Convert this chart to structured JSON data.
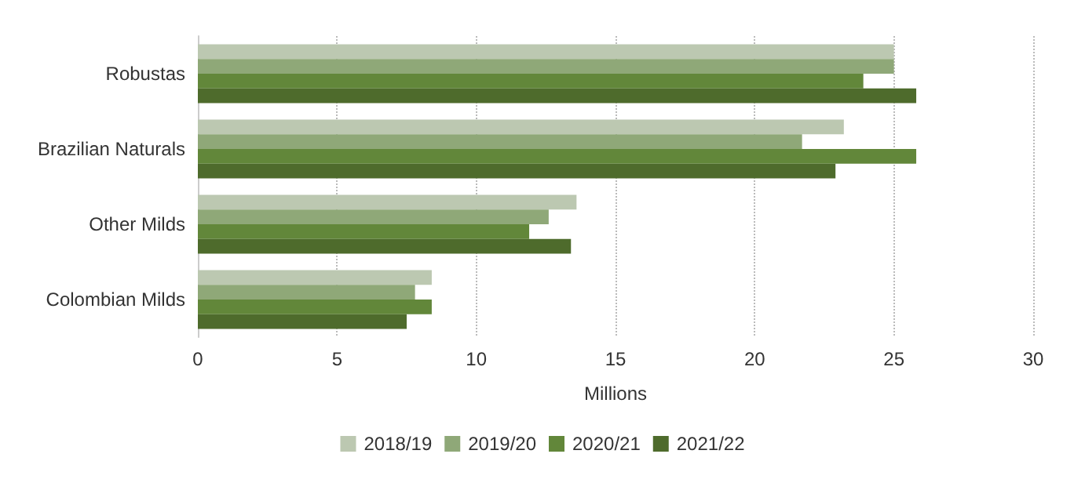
{
  "chart_data": {
    "type": "bar",
    "orientation": "horizontal",
    "xlabel": "Millions",
    "categories": [
      "Robustas",
      "Brazilian Naturals",
      "Other Milds",
      "Colombian Milds"
    ],
    "series": [
      {
        "name": "2018/19",
        "color": "#bcc8b1",
        "values": [
          25.0,
          23.2,
          13.6,
          8.4
        ]
      },
      {
        "name": "2019/20",
        "color": "#8fa878",
        "values": [
          25.0,
          21.7,
          12.6,
          7.8
        ]
      },
      {
        "name": "2020/21",
        "color": "#62873a",
        "values": [
          23.9,
          25.8,
          11.9,
          8.4
        ]
      },
      {
        "name": "2021/22",
        "color": "#4e6b2c",
        "values": [
          25.8,
          22.9,
          13.4,
          7.5
        ]
      }
    ],
    "xlim": [
      0,
      30
    ],
    "xticks": [
      0,
      5,
      10,
      15,
      20,
      25,
      30
    ],
    "grid": "x",
    "legend": "bottom"
  }
}
